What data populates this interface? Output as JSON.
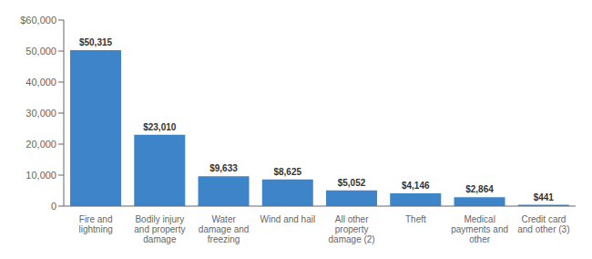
{
  "chart_data": {
    "type": "bar",
    "categories": [
      "Fire and\nlightning",
      "Bodily injury\nand property\ndamage",
      "Water\ndamage and\nfreezing",
      "Wind and hail",
      "All other\nproperty\ndamage (2)",
      "Theft",
      "Medical\npayments and\nother",
      "Credit card\nand other (3)"
    ],
    "values": [
      50315,
      23010,
      9633,
      8625,
      5052,
      4146,
      2864,
      441
    ],
    "value_labels": [
      "$50,315",
      "$23,010",
      "$9,633",
      "$8,625",
      "$5,052",
      "$4,146",
      "$2,864",
      "$441"
    ],
    "color": "#3d85c8",
    "ylim": [
      0,
      60000
    ],
    "yticks": [
      0,
      {
        "value": 10000,
        "label": "10,000"
      },
      {
        "value": 20000,
        "label": "20,000"
      },
      {
        "value": 30000,
        "label": "30,000"
      },
      {
        "value": 40000,
        "label": "40,000"
      },
      {
        "value": 50000,
        "label": "50,000"
      },
      {
        "value": 60000,
        "label": "$60,000"
      }
    ],
    "data_labels": true,
    "grid": false
  }
}
